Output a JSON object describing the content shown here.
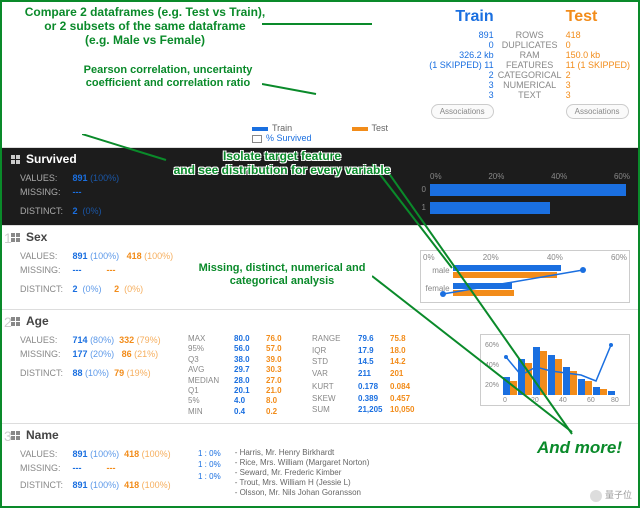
{
  "colors": {
    "train": "#1a6fe0",
    "test": "#f28c1a",
    "annot": "#0a8a2a",
    "grid": "#e0e0e0",
    "dark_bg": "#1c1c1c"
  },
  "annotations": {
    "a1": "Compare 2 dataframes (e.g. Test vs Train),\nor 2 subsets of the same dataframe\n(e.g. Male vs Female)",
    "a2": "Pearson correlation, uncertainty\ncoefficient and correlation ratio",
    "a3": "Isolate target feature\nand see distribution for every variable",
    "a4": "Missing, distinct, numerical and\ncategorical analysis",
    "a5": "And more!"
  },
  "header": {
    "train_label": "Train",
    "test_label": "Test",
    "assoc_btn": "Associations",
    "rows_labels": [
      "ROWS",
      "DUPLICATES",
      "RAM",
      "FEATURES",
      "CATEGORICAL",
      "NUMERICAL",
      "TEXT"
    ],
    "train_vals": [
      "891",
      "0",
      "326.2 kb",
      "(1 SKIPPED) 11",
      "2",
      "3",
      "3"
    ],
    "test_vals": [
      "418",
      "0",
      "150.0 kb",
      "11 (1 SKIPPED)",
      "2",
      "3",
      "3"
    ]
  },
  "legend": {
    "train": "Train",
    "test": "Test",
    "pct": "% Survived"
  },
  "survived": {
    "title": "Survived",
    "values": "891",
    "values_pct": "(100%)",
    "missing": "---",
    "distinct": "2",
    "distinct_pct": "(0%)",
    "chart": {
      "ticks": [
        "0%",
        "20%",
        "40%",
        "60%"
      ],
      "cats": [
        "0",
        "1"
      ],
      "bars": [
        62,
        38
      ]
    }
  },
  "sex": {
    "idx": "1",
    "title": "Sex",
    "values_t": "891",
    "values_t_pct": "(100%)",
    "values_e": "418",
    "values_e_pct": "(100%)",
    "missing_t": "---",
    "missing_e": "---",
    "distinct_t": "2",
    "distinct_t_pct": "(0%)",
    "distinct_e": "2",
    "distinct_e_pct": "(0%)",
    "chart": {
      "ticks": [
        "0%",
        "20%",
        "40%",
        "60%"
      ],
      "cats": [
        "male",
        "female"
      ],
      "train": [
        65,
        35
      ],
      "test": [
        64,
        36
      ],
      "line": [
        [
          0,
          18
        ],
        [
          1,
          74
        ]
      ]
    }
  },
  "age": {
    "idx": "2",
    "title": "Age",
    "values_t": "714",
    "values_t_pct": "(80%)",
    "values_e": "332",
    "values_e_pct": "(79%)",
    "missing_t": "177",
    "missing_t_pct": "(20%)",
    "missing_e": "86",
    "missing_e_pct": "(21%)",
    "distinct_t": "88",
    "distinct_t_pct": "(10%)",
    "distinct_e": "79",
    "distinct_e_pct": "(19%)",
    "numstats": {
      "left_keys": [
        "MAX",
        "95%",
        "Q3",
        "AVG",
        "MEDIAN",
        "Q1",
        "5%",
        "MIN"
      ],
      "left_t": [
        "80.0",
        "56.0",
        "38.0",
        "29.7",
        "28.0",
        "20.1",
        "4.0",
        "0.4"
      ],
      "left_e": [
        "76.0",
        "57.0",
        "39.0",
        "30.3",
        "27.0",
        "21.0",
        "8.0",
        "0.2"
      ],
      "right_keys": [
        "RANGE",
        "IQR",
        "STD",
        "VAR",
        "",
        "KURT",
        "SKEW",
        "SUM"
      ],
      "right_t": [
        "79.6",
        "17.9",
        "14.5",
        "211",
        "",
        "0.178",
        "0.389",
        "21,205"
      ],
      "right_e": [
        "75.8",
        "18.0",
        "14.2",
        "201",
        "",
        "0.084",
        "0.457",
        "10,050"
      ]
    },
    "chart": {
      "yticks": [
        "60%",
        "40%",
        "20%"
      ],
      "xticks": [
        "0",
        "20",
        "40",
        "60",
        "80"
      ]
    }
  },
  "name": {
    "idx": "3",
    "title": "Name",
    "values_t": "891",
    "values_t_pct": "(100%)",
    "values_e": "418",
    "values_e_pct": "(100%)",
    "missing_t": "---",
    "missing_e": "---",
    "distinct_t": "891",
    "distinct_t_pct": "(100%)",
    "distinct_e": "418",
    "distinct_e_pct": "(100%)",
    "ones": {
      "a": "1",
      "b": "0%",
      "c": "1",
      "d": "0%",
      "e": "1",
      "f": "0%"
    },
    "samples": [
      "Harris, Mr. Henry Birkhardt",
      "Rice, Mrs. William (Margaret Norton)",
      "Seward, Mr. Frederic Kimber",
      "Trout, Mrs. William H (Jessie L)",
      "Olsson, Mr. Nils Johan Goransson"
    ]
  },
  "labels": {
    "values": "VALUES:",
    "missing": "MISSING:",
    "distinct": "DISTINCT:"
  },
  "watermark": "量子位"
}
